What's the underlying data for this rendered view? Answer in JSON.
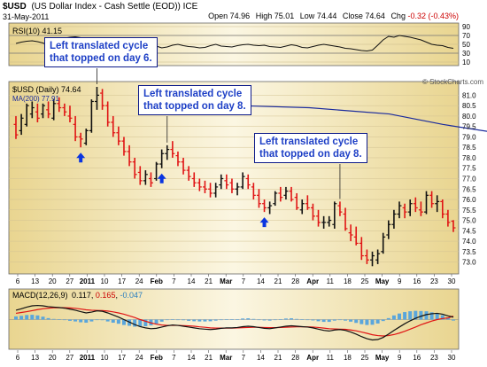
{
  "header": {
    "symbol": "$USD",
    "name": "(US Dollar Index - Cash Settle (EOD)) ICE",
    "date": "31-May-2011",
    "stats": [
      {
        "label": "Open",
        "value": "74.96"
      },
      {
        "label": "High",
        "value": "75.01"
      },
      {
        "label": "Low",
        "value": "74.44"
      },
      {
        "label": "Close",
        "value": "74.64"
      },
      {
        "label": "Chg",
        "value": "-0.32 (-0.43%)"
      }
    ],
    "change_color": "#cc0000",
    "watermark": "© StockCharts.com"
  },
  "colors": {
    "panel_bg": "#f6eecb",
    "up_bar": "#111111",
    "down_bar": "#e01414",
    "ma_line": "#1a2a9c",
    "arrow": "#0a35e0",
    "macd_line": "#111111",
    "signal_line": "#e01414",
    "histogram": "#5aa6dc"
  },
  "chart_data": [
    {
      "type": "line",
      "panel": "rsi",
      "legend": "RSI(10) 41.15",
      "ylim": [
        10,
        90
      ],
      "yticks": [
        10,
        30,
        50,
        70,
        90
      ],
      "reference_lines": [
        30,
        70
      ],
      "values": [
        52,
        55,
        57,
        58,
        56,
        53,
        48,
        55,
        62,
        64,
        66,
        67,
        65,
        58,
        55,
        53,
        52,
        50,
        47,
        48,
        53,
        55,
        51,
        49,
        48,
        50,
        46,
        42,
        44,
        48,
        50,
        47,
        45,
        44,
        42,
        43,
        47,
        50,
        46,
        45,
        44,
        47,
        49,
        50,
        48,
        47,
        48,
        45,
        44,
        43,
        46,
        49,
        47,
        43,
        42,
        45,
        48,
        50,
        48,
        46,
        44,
        41,
        40,
        38,
        36,
        35,
        37,
        48,
        60,
        68,
        66,
        70,
        68,
        66,
        63,
        60,
        55,
        50,
        48,
        47,
        43,
        41
      ]
    },
    {
      "type": "bar",
      "panel": "price",
      "legend": "$USD (Daily) 74.64",
      "ylim": [
        72.6,
        81.4
      ],
      "yticks": [
        73.0,
        73.5,
        74.0,
        74.5,
        75.0,
        75.5,
        76.0,
        76.5,
        77.0,
        77.5,
        78.0,
        78.5,
        79.0,
        79.5,
        80.0,
        80.5,
        81.0
      ],
      "x_ticks": [
        "6",
        "13",
        "20",
        "27",
        "2011",
        "10",
        "17",
        "24",
        "Feb",
        "7",
        "14",
        "21",
        "Mar",
        "7",
        "14",
        "21",
        "28",
        "Apr",
        "11",
        "18",
        "25",
        "May",
        "9",
        "16",
        "23",
        "30"
      ],
      "ohlc_fields": [
        "open",
        "high",
        "low",
        "close"
      ],
      "ohlc": [
        [
          79.6,
          80.0,
          78.9,
          79.1
        ],
        [
          79.3,
          80.1,
          79.1,
          79.9
        ],
        [
          79.6,
          80.6,
          79.5,
          80.5
        ],
        [
          80.1,
          80.7,
          79.9,
          80.4
        ],
        [
          80.2,
          80.6,
          79.7,
          79.9
        ],
        [
          80.1,
          80.6,
          79.9,
          80.5
        ],
        [
          80.3,
          80.7,
          79.9,
          80.1
        ],
        [
          79.9,
          80.8,
          79.8,
          80.6
        ],
        [
          80.6,
          80.9,
          80.2,
          80.4
        ],
        [
          80.4,
          80.6,
          80.0,
          80.2
        ],
        [
          80.0,
          80.5,
          79.7,
          79.9
        ],
        [
          79.6,
          80.0,
          78.8,
          79.0
        ],
        [
          79.0,
          79.2,
          78.5,
          78.9
        ],
        [
          78.7,
          79.4,
          78.6,
          79.3
        ],
        [
          79.3,
          80.8,
          79.2,
          80.7
        ],
        [
          80.7,
          81.4,
          80.3,
          81.0
        ],
        [
          81.1,
          81.3,
          80.3,
          80.5
        ],
        [
          80.5,
          80.7,
          79.5,
          79.7
        ],
        [
          79.7,
          80.0,
          79.0,
          79.2
        ],
        [
          79.2,
          79.5,
          78.6,
          78.8
        ],
        [
          78.8,
          79.0,
          78.1,
          78.3
        ],
        [
          78.3,
          78.6,
          77.6,
          77.8
        ],
        [
          77.8,
          78.0,
          77.0,
          77.2
        ],
        [
          77.3,
          77.6,
          76.7,
          76.9
        ],
        [
          76.9,
          77.4,
          76.7,
          77.2
        ],
        [
          77.0,
          77.3,
          76.6,
          76.8
        ],
        [
          77.0,
          77.8,
          76.9,
          77.7
        ],
        [
          77.7,
          78.4,
          77.5,
          78.2
        ],
        [
          78.2,
          78.6,
          77.9,
          78.4
        ],
        [
          78.4,
          78.8,
          78.0,
          78.2
        ],
        [
          78.1,
          78.3,
          77.6,
          77.8
        ],
        [
          77.8,
          78.0,
          77.2,
          77.4
        ],
        [
          77.4,
          77.6,
          76.9,
          77.1
        ],
        [
          77.0,
          77.3,
          76.6,
          76.8
        ],
        [
          76.8,
          77.0,
          76.4,
          76.6
        ],
        [
          76.6,
          76.9,
          76.3,
          76.5
        ],
        [
          76.5,
          76.8,
          76.1,
          76.3
        ],
        [
          76.3,
          76.8,
          76.1,
          76.6
        ],
        [
          76.7,
          77.2,
          76.5,
          77.0
        ],
        [
          76.9,
          77.2,
          76.5,
          76.7
        ],
        [
          76.8,
          77.0,
          76.3,
          76.5
        ],
        [
          76.5,
          76.8,
          76.2,
          76.6
        ],
        [
          76.6,
          77.3,
          76.5,
          77.1
        ],
        [
          77.0,
          77.2,
          76.5,
          76.7
        ],
        [
          76.6,
          76.8,
          76.0,
          76.2
        ],
        [
          76.2,
          76.5,
          75.6,
          75.8
        ],
        [
          75.8,
          76.0,
          75.4,
          75.6
        ],
        [
          75.6,
          75.9,
          75.3,
          75.7
        ],
        [
          75.8,
          76.4,
          75.7,
          76.3
        ],
        [
          76.3,
          76.6,
          75.9,
          76.1
        ],
        [
          76.2,
          76.6,
          76.0,
          76.4
        ],
        [
          76.4,
          76.6,
          75.9,
          76.0
        ],
        [
          76.1,
          76.3,
          75.5,
          75.6
        ],
        [
          75.5,
          76.0,
          75.3,
          75.8
        ],
        [
          75.8,
          76.2,
          75.5,
          75.6
        ],
        [
          75.6,
          75.8,
          75.0,
          75.2
        ],
        [
          75.2,
          75.5,
          74.7,
          74.9
        ],
        [
          74.9,
          75.2,
          74.6,
          74.9
        ],
        [
          74.9,
          75.2,
          74.7,
          75.0
        ],
        [
          74.8,
          75.9,
          74.6,
          75.8
        ],
        [
          75.7,
          75.9,
          75.2,
          75.4
        ],
        [
          75.3,
          75.6,
          74.5,
          74.6
        ],
        [
          74.4,
          74.8,
          74.0,
          74.3
        ],
        [
          74.2,
          74.7,
          73.8,
          73.9
        ],
        [
          73.9,
          74.2,
          73.1,
          73.3
        ],
        [
          73.3,
          73.6,
          72.9,
          73.1
        ],
        [
          73.1,
          73.5,
          72.8,
          73.3
        ],
        [
          73.1,
          73.6,
          72.9,
          73.4
        ],
        [
          73.5,
          74.4,
          73.4,
          74.2
        ],
        [
          74.3,
          75.0,
          74.1,
          74.8
        ],
        [
          74.8,
          75.5,
          74.6,
          75.3
        ],
        [
          75.3,
          75.9,
          75.1,
          75.7
        ],
        [
          75.6,
          75.8,
          75.1,
          75.4
        ],
        [
          75.4,
          76.0,
          75.2,
          75.8
        ],
        [
          75.8,
          76.1,
          75.4,
          75.6
        ],
        [
          75.5,
          75.9,
          75.2,
          75.4
        ],
        [
          75.4,
          76.4,
          75.3,
          76.2
        ],
        [
          76.2,
          76.4,
          75.6,
          75.8
        ],
        [
          75.8,
          76.2,
          75.4,
          75.9
        ],
        [
          75.9,
          76.0,
          75.1,
          75.3
        ],
        [
          75.3,
          75.5,
          74.7,
          74.9
        ],
        [
          74.96,
          75.01,
          74.44,
          74.64
        ]
      ],
      "ma_series": {
        "name": "MA(200) 77.91",
        "points": [
          [
            42,
            80.5
          ],
          [
            55,
            80.4
          ],
          [
            70,
            80.1
          ],
          [
            80,
            79.6
          ],
          [
            100,
            78.8
          ],
          [
            120,
            78.3
          ],
          [
            140,
            78.0
          ]
        ],
        "index_scale": 82
      },
      "annotations": [
        {
          "lines": [
            "Left translated cycle",
            "that topped on day 6."
          ],
          "bar_index": 15
        },
        {
          "lines": [
            "Left translated cycle",
            "that topped on day 8."
          ],
          "bar_index": 28
        },
        {
          "lines": [
            "Left translated cycle",
            "that topped on day 8."
          ],
          "bar_index": 60
        }
      ],
      "low_arrows": [
        12,
        27,
        46
      ]
    },
    {
      "type": "line",
      "panel": "macd",
      "legend_label": "MACD(12,26,9)",
      "legend_values": [
        "0.117",
        "0.165",
        "-0.047"
      ],
      "ylim": [
        -1.3,
        1.3
      ],
      "zero_line": true,
      "macd": [
        0.45,
        0.52,
        0.6,
        0.66,
        0.68,
        0.66,
        0.62,
        0.6,
        0.58,
        0.55,
        0.5,
        0.45,
        0.38,
        0.32,
        0.36,
        0.42,
        0.4,
        0.32,
        0.22,
        0.12,
        0.0,
        -0.12,
        -0.24,
        -0.34,
        -0.4,
        -0.44,
        -0.42,
        -0.36,
        -0.3,
        -0.26,
        -0.28,
        -0.32,
        -0.36,
        -0.4,
        -0.44,
        -0.46,
        -0.48,
        -0.46,
        -0.42,
        -0.4,
        -0.4,
        -0.38,
        -0.34,
        -0.32,
        -0.34,
        -0.38,
        -0.42,
        -0.44,
        -0.4,
        -0.36,
        -0.32,
        -0.3,
        -0.32,
        -0.34,
        -0.36,
        -0.4,
        -0.46,
        -0.52,
        -0.55,
        -0.5,
        -0.48,
        -0.52,
        -0.6,
        -0.7,
        -0.82,
        -0.92,
        -0.98,
        -0.96,
        -0.86,
        -0.7,
        -0.52,
        -0.36,
        -0.2,
        -0.06,
        0.06,
        0.16,
        0.24,
        0.28,
        0.3,
        0.26,
        0.18,
        0.117
      ],
      "signal": [
        0.3,
        0.34,
        0.38,
        0.43,
        0.48,
        0.52,
        0.55,
        0.57,
        0.57,
        0.57,
        0.56,
        0.54,
        0.51,
        0.47,
        0.45,
        0.44,
        0.43,
        0.41,
        0.37,
        0.32,
        0.26,
        0.18,
        0.1,
        0.0,
        -0.08,
        -0.16,
        -0.22,
        -0.26,
        -0.28,
        -0.28,
        -0.28,
        -0.29,
        -0.3,
        -0.32,
        -0.35,
        -0.37,
        -0.4,
        -0.41,
        -0.41,
        -0.41,
        -0.41,
        -0.4,
        -0.39,
        -0.38,
        -0.37,
        -0.37,
        -0.38,
        -0.39,
        -0.39,
        -0.38,
        -0.37,
        -0.36,
        -0.35,
        -0.35,
        -0.35,
        -0.36,
        -0.38,
        -0.41,
        -0.44,
        -0.45,
        -0.46,
        -0.47,
        -0.5,
        -0.54,
        -0.6,
        -0.66,
        -0.73,
        -0.77,
        -0.79,
        -0.77,
        -0.72,
        -0.65,
        -0.56,
        -0.46,
        -0.36,
        -0.25,
        -0.16,
        -0.07,
        0.0,
        0.05,
        0.08,
        0.165
      ]
    }
  ]
}
